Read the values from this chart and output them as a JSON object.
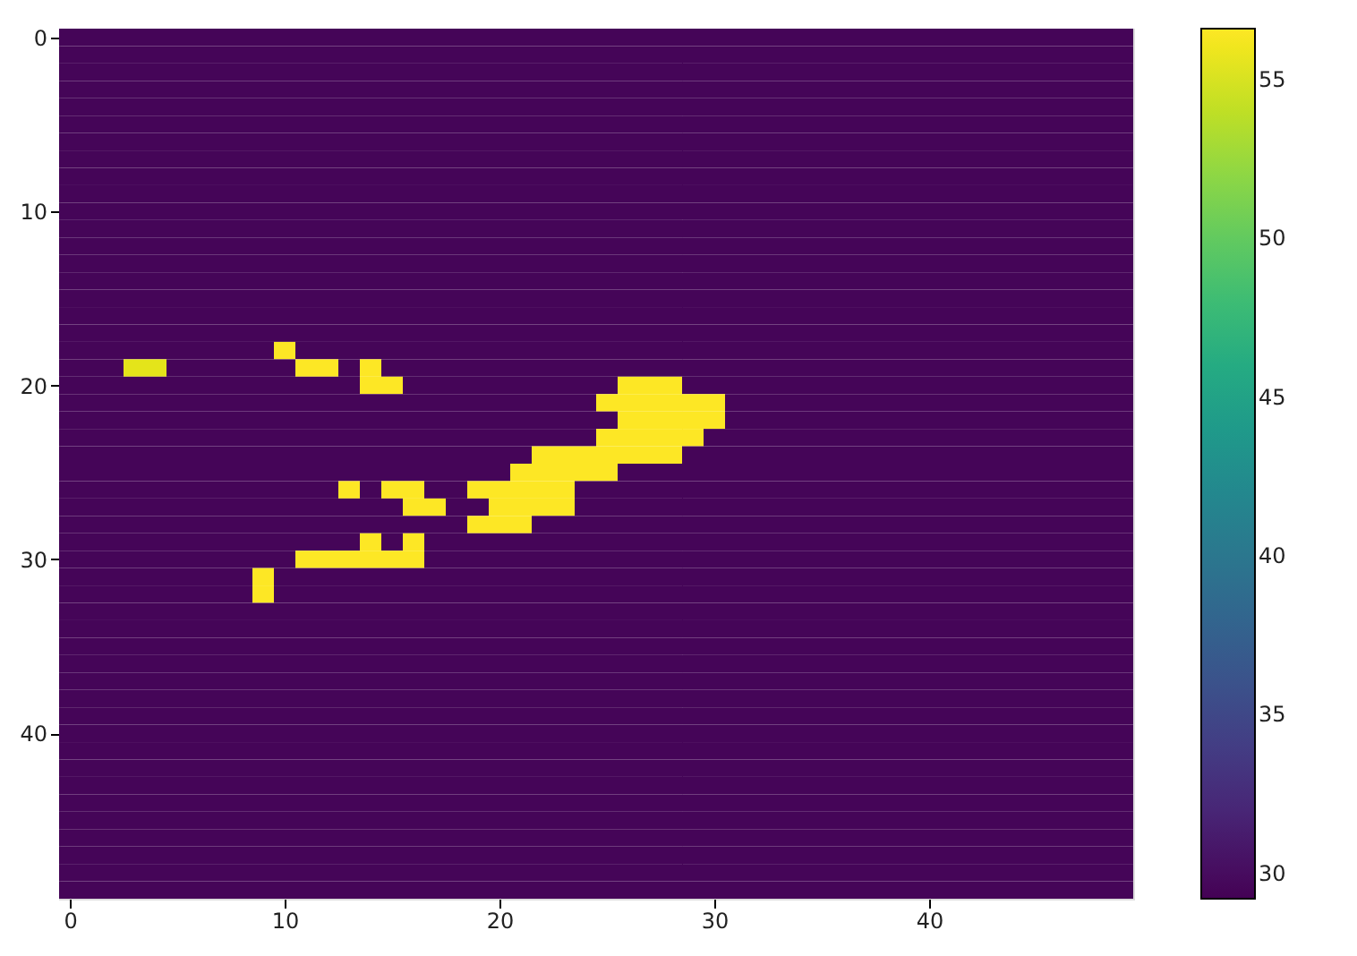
{
  "chart_data": {
    "type": "heatmap",
    "xlim": [
      -0.5,
      49.5
    ],
    "xticks": [
      0,
      10,
      20,
      30,
      40
    ],
    "ylim": [
      49.5,
      -0.5
    ],
    "yticks": [
      0,
      10,
      20,
      30,
      40
    ],
    "clim": [
      29.2,
      56.6
    ],
    "cticks": [
      30,
      35,
      40,
      45,
      50,
      55
    ],
    "grid": false,
    "cells": [
      [
        29.5,
        29.5,
        29.5,
        29.5,
        29.5,
        29.5,
        29.5,
        29.5,
        29.5,
        29.5,
        29.5,
        29.5,
        29.5,
        29.5,
        29.5,
        29.5,
        29.5,
        29.5,
        29.5,
        29.5,
        29.5,
        29.5,
        29.5,
        29.5,
        29.5,
        29.5,
        29.5,
        29.5,
        29.5,
        29.5,
        29.5,
        29.5,
        29.5,
        29.5,
        29.5,
        29.5,
        29.5,
        29.5,
        29.5,
        29.5,
        29.5,
        29.5,
        29.5,
        29.5,
        29.5,
        29.5,
        29.5,
        29.5,
        29.5,
        29.5
      ],
      [
        29.5,
        29.5,
        29.5,
        29.5,
        29.5,
        29.5,
        29.5,
        29.5,
        29.5,
        29.5,
        29.5,
        29.5,
        29.5,
        29.5,
        29.5,
        29.5,
        29.5,
        29.5,
        29.5,
        29.5,
        29.5,
        29.5,
        29.5,
        29.5,
        29.5,
        29.5,
        29.5,
        29.5,
        29.5,
        29.5,
        29.5,
        29.5,
        29.5,
        29.5,
        29.5,
        29.5,
        29.5,
        29.5,
        29.5,
        29.5,
        29.5,
        29.5,
        29.5,
        29.5,
        29.5,
        29.5,
        29.5,
        29.5,
        29.5,
        29.5
      ],
      [
        29.5,
        29.5,
        29.5,
        29.5,
        29.5,
        29.5,
        29.5,
        29.5,
        29.5,
        29.5,
        29.5,
        29.5,
        29.5,
        29.5,
        29.5,
        29.5,
        29.5,
        29.5,
        29.5,
        29.5,
        29.5,
        29.5,
        29.5,
        29.5,
        29.5,
        29.5,
        29.5,
        29.5,
        29.5,
        29.5,
        29.5,
        29.5,
        29.5,
        29.5,
        29.5,
        29.5,
        29.5,
        29.5,
        29.5,
        29.5,
        29.5,
        29.5,
        29.5,
        29.5,
        29.5,
        29.5,
        29.5,
        29.5,
        29.5,
        29.5
      ],
      [
        29.5,
        29.5,
        29.5,
        29.5,
        29.5,
        29.5,
        29.5,
        29.5,
        29.5,
        29.5,
        29.5,
        29.5,
        29.5,
        29.5,
        29.5,
        29.5,
        29.5,
        29.5,
        29.5,
        29.5,
        29.5,
        29.5,
        29.5,
        29.5,
        29.5,
        29.5,
        29.5,
        29.5,
        29.5,
        29.5,
        29.5,
        29.5,
        29.5,
        29.5,
        29.5,
        29.5,
        29.5,
        29.5,
        29.5,
        29.5,
        29.5,
        29.5,
        29.5,
        29.5,
        29.5,
        29.5,
        29.5,
        29.5,
        29.5,
        29.5
      ],
      [
        29.5,
        29.5,
        29.5,
        29.5,
        29.5,
        29.5,
        29.5,
        29.5,
        29.5,
        29.5,
        29.5,
        29.5,
        29.5,
        29.5,
        29.5,
        29.5,
        29.5,
        29.5,
        29.5,
        29.5,
        29.5,
        29.5,
        29.5,
        29.5,
        29.5,
        29.5,
        29.5,
        29.5,
        29.5,
        29.5,
        29.5,
        29.5,
        29.5,
        29.5,
        29.5,
        29.5,
        29.5,
        29.5,
        29.5,
        29.5,
        29.5,
        29.5,
        29.5,
        29.5,
        29.5,
        29.5,
        29.5,
        29.5,
        29.5,
        29.5
      ],
      [
        29.5,
        29.5,
        29.5,
        29.5,
        29.5,
        29.5,
        29.5,
        29.5,
        29.5,
        29.5,
        29.5,
        29.5,
        29.5,
        29.5,
        29.5,
        29.5,
        29.5,
        29.5,
        29.5,
        29.5,
        29.5,
        29.5,
        29.5,
        29.5,
        29.5,
        29.5,
        29.5,
        29.5,
        29.5,
        29.5,
        29.5,
        29.5,
        29.5,
        29.5,
        29.5,
        29.5,
        29.5,
        29.5,
        29.5,
        29.5,
        29.5,
        29.5,
        29.5,
        29.5,
        29.5,
        29.5,
        29.5,
        29.5,
        29.5,
        29.5
      ],
      [
        29.5,
        29.5,
        29.5,
        29.5,
        29.5,
        29.5,
        29.5,
        29.5,
        29.5,
        29.5,
        29.5,
        29.5,
        29.5,
        29.5,
        29.5,
        29.5,
        29.5,
        29.5,
        29.5,
        29.5,
        29.5,
        29.5,
        29.5,
        29.5,
        29.5,
        29.5,
        29.5,
        29.5,
        29.5,
        29.5,
        29.5,
        29.5,
        29.5,
        29.5,
        29.5,
        29.5,
        29.5,
        29.5,
        29.5,
        29.5,
        29.5,
        29.5,
        29.5,
        29.5,
        29.5,
        29.5,
        29.5,
        29.5,
        29.5,
        29.5
      ],
      [
        29.5,
        29.5,
        29.5,
        29.5,
        29.5,
        29.5,
        29.5,
        29.5,
        29.5,
        29.5,
        29.5,
        29.5,
        29.5,
        29.5,
        29.5,
        29.5,
        29.5,
        29.5,
        29.5,
        29.5,
        29.5,
        29.5,
        29.5,
        29.5,
        29.5,
        29.5,
        29.5,
        29.5,
        29.5,
        29.5,
        29.5,
        29.5,
        29.5,
        29.5,
        29.5,
        29.5,
        29.5,
        29.5,
        29.5,
        29.5,
        29.5,
        29.5,
        29.5,
        29.5,
        29.5,
        29.5,
        29.5,
        29.5,
        29.5,
        29.5
      ],
      [
        29.5,
        29.5,
        29.5,
        29.5,
        29.5,
        29.5,
        29.5,
        29.5,
        29.5,
        29.5,
        29.5,
        29.5,
        29.5,
        29.5,
        29.5,
        29.5,
        29.5,
        29.5,
        29.5,
        29.5,
        29.5,
        29.5,
        29.5,
        29.5,
        29.5,
        29.5,
        29.5,
        29.5,
        29.5,
        29.5,
        29.5,
        29.5,
        29.5,
        29.5,
        29.5,
        29.5,
        29.5,
        29.5,
        29.5,
        29.5,
        29.5,
        29.5,
        29.5,
        29.5,
        29.5,
        29.5,
        29.5,
        29.5,
        29.5,
        29.5
      ],
      [
        29.5,
        29.5,
        29.5,
        29.5,
        29.5,
        29.5,
        29.5,
        29.5,
        29.5,
        29.5,
        29.5,
        29.5,
        29.5,
        29.5,
        29.5,
        29.5,
        29.5,
        29.5,
        29.5,
        29.5,
        29.5,
        29.5,
        29.5,
        29.5,
        29.5,
        29.5,
        29.5,
        29.5,
        29.5,
        29.5,
        29.5,
        29.5,
        29.5,
        29.5,
        29.5,
        29.5,
        29.5,
        29.5,
        29.5,
        29.5,
        29.5,
        29.5,
        29.5,
        29.5,
        29.5,
        29.5,
        29.5,
        29.5,
        29.5,
        29.5
      ],
      [
        29.5,
        29.5,
        29.5,
        29.5,
        29.5,
        29.5,
        29.5,
        29.5,
        29.5,
        29.5,
        29.5,
        29.5,
        29.5,
        29.5,
        29.5,
        29.5,
        29.5,
        29.5,
        29.5,
        29.5,
        29.5,
        29.5,
        29.5,
        29.5,
        29.5,
        29.5,
        29.5,
        29.5,
        29.5,
        29.5,
        29.5,
        29.5,
        29.5,
        29.5,
        29.5,
        29.5,
        29.5,
        29.5,
        29.5,
        29.5,
        29.5,
        29.5,
        29.5,
        29.5,
        29.5,
        29.5,
        29.5,
        29.5,
        29.5,
        29.5
      ],
      [
        29.5,
        29.5,
        29.5,
        29.5,
        29.5,
        29.5,
        29.5,
        29.5,
        29.5,
        29.5,
        29.5,
        29.5,
        29.5,
        29.5,
        29.5,
        29.5,
        29.5,
        29.5,
        29.5,
        29.5,
        29.5,
        29.5,
        29.5,
        29.5,
        29.5,
        29.5,
        29.5,
        29.5,
        29.5,
        29.5,
        29.5,
        29.5,
        29.5,
        29.5,
        29.5,
        29.5,
        29.5,
        29.5,
        29.5,
        29.5,
        29.5,
        29.5,
        29.5,
        29.5,
        29.5,
        29.5,
        29.5,
        29.5,
        29.5,
        29.5
      ],
      [
        29.5,
        29.5,
        29.5,
        29.5,
        29.5,
        29.5,
        29.5,
        29.5,
        29.5,
        29.5,
        29.5,
        29.5,
        29.5,
        29.5,
        29.5,
        29.5,
        29.5,
        29.5,
        29.5,
        29.5,
        29.5,
        29.5,
        29.5,
        29.5,
        29.5,
        29.5,
        29.5,
        29.5,
        29.5,
        29.5,
        29.5,
        29.5,
        29.5,
        29.5,
        29.5,
        29.5,
        29.5,
        29.5,
        29.5,
        29.5,
        29.5,
        29.5,
        29.5,
        29.5,
        29.5,
        29.5,
        29.5,
        29.5,
        29.5,
        29.5
      ],
      [
        29.5,
        29.5,
        29.5,
        29.5,
        29.5,
        29.5,
        29.5,
        29.5,
        29.5,
        29.5,
        29.5,
        29.5,
        29.5,
        29.5,
        29.5,
        29.5,
        29.5,
        29.5,
        29.5,
        29.5,
        29.5,
        29.5,
        29.5,
        29.5,
        29.5,
        29.5,
        29.5,
        29.5,
        29.5,
        29.5,
        29.5,
        29.5,
        29.5,
        29.5,
        29.5,
        29.5,
        29.5,
        29.5,
        29.5,
        29.5,
        29.5,
        29.5,
        29.5,
        29.5,
        29.5,
        29.5,
        29.5,
        29.5,
        29.5,
        29.5
      ],
      [
        29.5,
        29.5,
        29.5,
        29.5,
        29.5,
        29.5,
        29.5,
        29.5,
        29.5,
        29.5,
        29.5,
        29.5,
        29.5,
        29.5,
        29.5,
        29.5,
        29.5,
        29.5,
        29.5,
        29.5,
        29.5,
        29.5,
        29.5,
        29.5,
        29.5,
        29.5,
        29.5,
        29.5,
        29.5,
        29.5,
        29.5,
        29.5,
        29.5,
        29.5,
        29.5,
        29.5,
        29.5,
        29.5,
        29.5,
        29.5,
        29.5,
        29.5,
        29.5,
        29.5,
        29.5,
        29.5,
        29.5,
        29.5,
        29.5,
        29.5
      ],
      [
        29.5,
        29.5,
        29.5,
        29.5,
        29.5,
        29.5,
        29.5,
        29.5,
        29.5,
        29.5,
        29.5,
        29.5,
        29.5,
        29.5,
        29.5,
        29.5,
        29.5,
        29.5,
        29.5,
        29.5,
        29.5,
        29.5,
        29.5,
        29.5,
        29.5,
        29.5,
        29.5,
        29.5,
        29.5,
        29.5,
        29.5,
        29.5,
        29.5,
        29.5,
        29.5,
        29.5,
        29.5,
        29.5,
        29.5,
        29.5,
        29.5,
        29.5,
        29.5,
        29.5,
        29.5,
        29.5,
        29.5,
        29.5,
        29.5,
        29.5
      ],
      [
        29.5,
        29.5,
        29.5,
        29.5,
        29.5,
        29.5,
        29.5,
        29.5,
        29.5,
        29.5,
        29.5,
        29.5,
        29.5,
        29.5,
        29.5,
        29.5,
        29.5,
        29.5,
        29.5,
        29.5,
        29.5,
        29.5,
        29.5,
        29.5,
        29.5,
        29.5,
        29.5,
        29.5,
        29.5,
        29.5,
        29.5,
        29.5,
        29.5,
        29.5,
        29.5,
        29.5,
        29.5,
        29.5,
        29.5,
        29.5,
        29.5,
        29.5,
        29.5,
        29.5,
        29.5,
        29.5,
        29.5,
        29.5,
        29.5,
        29.5
      ],
      [
        29.5,
        29.5,
        29.5,
        29.5,
        29.5,
        29.5,
        29.5,
        29.5,
        29.5,
        29.5,
        29.5,
        29.5,
        29.5,
        29.5,
        29.5,
        29.5,
        29.5,
        29.5,
        29.5,
        29.5,
        29.5,
        29.5,
        29.5,
        29.5,
        29.5,
        29.5,
        29.5,
        29.5,
        29.5,
        29.5,
        29.5,
        29.5,
        29.5,
        29.5,
        29.5,
        29.5,
        29.5,
        29.5,
        29.5,
        29.5,
        29.5,
        29.5,
        29.5,
        29.5,
        29.5,
        29.5,
        29.5,
        29.5,
        29.5,
        29.5
      ],
      [
        29.5,
        29.5,
        29.5,
        29.5,
        29.5,
        29.5,
        29.5,
        29.5,
        29.5,
        29.5,
        56.6,
        29.5,
        29.5,
        29.5,
        29.5,
        29.5,
        29.5,
        29.5,
        29.5,
        29.5,
        29.5,
        29.5,
        29.5,
        29.5,
        29.5,
        29.5,
        29.5,
        29.5,
        29.5,
        29.5,
        29.5,
        29.5,
        29.5,
        29.5,
        29.5,
        29.5,
        29.5,
        29.5,
        29.5,
        29.5,
        29.5,
        29.5,
        29.5,
        29.5,
        29.5,
        29.5,
        29.5,
        29.5,
        29.5,
        29.5
      ],
      [
        29.5,
        29.5,
        29.5,
        55.5,
        55.5,
        29.5,
        29.5,
        29.5,
        29.5,
        29.5,
        29.5,
        56.6,
        56.6,
        29.5,
        56.6,
        29.5,
        29.5,
        29.5,
        29.5,
        29.5,
        29.5,
        29.5,
        29.5,
        29.5,
        29.5,
        29.5,
        29.5,
        29.5,
        29.5,
        29.5,
        29.5,
        29.5,
        29.5,
        29.5,
        29.5,
        29.5,
        29.5,
        29.5,
        29.5,
        29.5,
        29.5,
        29.5,
        29.5,
        29.5,
        29.5,
        29.5,
        29.5,
        29.5,
        29.5,
        29.5
      ],
      [
        29.5,
        29.5,
        29.5,
        29.5,
        29.5,
        29.5,
        29.5,
        29.5,
        29.5,
        29.5,
        29.5,
        29.5,
        29.5,
        29.5,
        56.6,
        56.6,
        29.5,
        29.5,
        29.5,
        29.5,
        29.5,
        29.5,
        29.5,
        29.5,
        29.5,
        29.5,
        56.6,
        56.6,
        56.6,
        29.5,
        29.5,
        29.5,
        29.5,
        29.5,
        29.5,
        29.5,
        29.5,
        29.5,
        29.5,
        29.5,
        29.5,
        29.5,
        29.5,
        29.5,
        29.5,
        29.5,
        29.5,
        29.5,
        29.5,
        29.5
      ],
      [
        29.5,
        29.5,
        29.5,
        29.5,
        29.5,
        29.5,
        29.5,
        29.5,
        29.5,
        29.5,
        29.5,
        29.5,
        29.5,
        29.5,
        29.5,
        29.5,
        29.5,
        29.5,
        29.5,
        29.5,
        29.5,
        29.5,
        29.5,
        29.5,
        29.5,
        56.6,
        56.6,
        56.6,
        56.6,
        56.6,
        56.6,
        29.5,
        29.5,
        29.5,
        29.5,
        29.5,
        29.5,
        29.5,
        29.5,
        29.5,
        29.5,
        29.5,
        29.5,
        29.5,
        29.5,
        29.5,
        29.5,
        29.5,
        29.5,
        29.5
      ],
      [
        29.5,
        29.5,
        29.5,
        29.5,
        29.5,
        29.5,
        29.5,
        29.5,
        29.5,
        29.5,
        29.5,
        29.5,
        29.5,
        29.5,
        29.5,
        29.5,
        29.5,
        29.5,
        29.5,
        29.5,
        29.5,
        29.5,
        29.5,
        29.5,
        29.5,
        29.5,
        56.6,
        56.6,
        56.6,
        56.6,
        56.6,
        29.5,
        29.5,
        29.5,
        29.5,
        29.5,
        29.5,
        29.5,
        29.5,
        29.5,
        29.5,
        29.5,
        29.5,
        29.5,
        29.5,
        29.5,
        29.5,
        29.5,
        29.5,
        29.5
      ],
      [
        29.5,
        29.5,
        29.5,
        29.5,
        29.5,
        29.5,
        29.5,
        29.5,
        29.5,
        29.5,
        29.5,
        29.5,
        29.5,
        29.5,
        29.5,
        29.5,
        29.5,
        29.5,
        29.5,
        29.5,
        29.5,
        29.5,
        29.5,
        29.5,
        29.5,
        56.6,
        56.6,
        56.6,
        56.6,
        56.6,
        29.5,
        29.5,
        29.5,
        29.5,
        29.5,
        29.5,
        29.5,
        29.5,
        29.5,
        29.5,
        29.5,
        29.5,
        29.5,
        29.5,
        29.5,
        29.5,
        29.5,
        29.5,
        29.5,
        29.5
      ],
      [
        29.5,
        29.5,
        29.5,
        29.5,
        29.5,
        29.5,
        29.5,
        29.5,
        29.5,
        29.5,
        29.5,
        29.5,
        29.5,
        29.5,
        29.5,
        29.5,
        29.5,
        29.5,
        29.5,
        29.5,
        29.5,
        29.5,
        56.6,
        56.6,
        56.6,
        56.6,
        56.6,
        56.6,
        56.6,
        29.5,
        29.5,
        29.5,
        29.5,
        29.5,
        29.5,
        29.5,
        29.5,
        29.5,
        29.5,
        29.5,
        29.5,
        29.5,
        29.5,
        29.5,
        29.5,
        29.5,
        29.5,
        29.5,
        29.5,
        29.5
      ],
      [
        29.5,
        29.5,
        29.5,
        29.5,
        29.5,
        29.5,
        29.5,
        29.5,
        29.5,
        29.5,
        29.5,
        29.5,
        29.5,
        29.5,
        29.5,
        29.5,
        29.5,
        29.5,
        29.5,
        29.5,
        29.5,
        56.6,
        56.6,
        56.6,
        56.6,
        56.6,
        29.5,
        29.5,
        29.5,
        29.5,
        29.5,
        29.5,
        29.5,
        29.5,
        29.5,
        29.5,
        29.5,
        29.5,
        29.5,
        29.5,
        29.5,
        29.5,
        29.5,
        29.5,
        29.5,
        29.5,
        29.5,
        29.5,
        29.5,
        29.5
      ],
      [
        29.5,
        29.5,
        29.5,
        29.5,
        29.5,
        29.5,
        29.5,
        29.5,
        29.5,
        29.5,
        29.5,
        29.5,
        29.5,
        56.6,
        29.5,
        56.6,
        56.6,
        29.5,
        29.5,
        56.6,
        56.6,
        56.6,
        56.6,
        56.6,
        29.5,
        29.5,
        29.5,
        29.5,
        29.5,
        29.5,
        29.5,
        29.5,
        29.5,
        29.5,
        29.5,
        29.5,
        29.5,
        29.5,
        29.5,
        29.5,
        29.5,
        29.5,
        29.5,
        29.5,
        29.5,
        29.5,
        29.5,
        29.5,
        29.5,
        29.5
      ],
      [
        29.5,
        29.5,
        29.5,
        29.5,
        29.5,
        29.5,
        29.5,
        29.5,
        29.5,
        29.5,
        29.5,
        29.5,
        29.5,
        29.5,
        29.5,
        29.5,
        56.6,
        56.6,
        29.5,
        29.5,
        56.6,
        56.6,
        56.6,
        56.6,
        29.5,
        29.5,
        29.5,
        29.5,
        29.5,
        29.5,
        29.5,
        29.5,
        29.5,
        29.5,
        29.5,
        29.5,
        29.5,
        29.5,
        29.5,
        29.5,
        29.5,
        29.5,
        29.5,
        29.5,
        29.5,
        29.5,
        29.5,
        29.5,
        29.5,
        29.5
      ],
      [
        29.5,
        29.5,
        29.5,
        29.5,
        29.5,
        29.5,
        29.5,
        29.5,
        29.5,
        29.5,
        29.5,
        29.5,
        29.5,
        29.5,
        29.5,
        29.5,
        29.5,
        29.5,
        29.5,
        56.6,
        56.6,
        56.6,
        29.5,
        29.5,
        29.5,
        29.5,
        29.5,
        29.5,
        29.5,
        29.5,
        29.5,
        29.5,
        29.5,
        29.5,
        29.5,
        29.5,
        29.5,
        29.5,
        29.5,
        29.5,
        29.5,
        29.5,
        29.5,
        29.5,
        29.5,
        29.5,
        29.5,
        29.5,
        29.5,
        29.5
      ],
      [
        29.5,
        29.5,
        29.5,
        29.5,
        29.5,
        29.5,
        29.5,
        29.5,
        29.5,
        29.5,
        29.5,
        29.5,
        29.5,
        29.5,
        56.6,
        29.5,
        56.6,
        29.5,
        29.5,
        29.5,
        29.5,
        29.5,
        29.5,
        29.5,
        29.5,
        29.5,
        29.5,
        29.5,
        29.5,
        29.5,
        29.5,
        29.5,
        29.5,
        29.5,
        29.5,
        29.5,
        29.5,
        29.5,
        29.5,
        29.5,
        29.5,
        29.5,
        29.5,
        29.5,
        29.5,
        29.5,
        29.5,
        29.5,
        29.5,
        29.5
      ],
      [
        29.5,
        29.5,
        29.5,
        29.5,
        29.5,
        29.5,
        29.5,
        29.5,
        29.5,
        29.5,
        29.5,
        56.6,
        56.6,
        56.6,
        56.6,
        56.6,
        56.6,
        29.5,
        29.5,
        29.5,
        29.5,
        29.5,
        29.5,
        29.5,
        29.5,
        29.5,
        29.5,
        29.5,
        29.5,
        29.5,
        29.5,
        29.5,
        29.5,
        29.5,
        29.5,
        29.5,
        29.5,
        29.5,
        29.5,
        29.5,
        29.5,
        29.5,
        29.5,
        29.5,
        29.5,
        29.5,
        29.5,
        29.5,
        29.5,
        29.5
      ],
      [
        29.5,
        29.5,
        29.5,
        29.5,
        29.5,
        29.5,
        29.5,
        29.5,
        29.5,
        56.6,
        29.5,
        29.5,
        29.5,
        29.5,
        29.5,
        29.5,
        29.5,
        29.5,
        29.5,
        29.5,
        29.5,
        29.5,
        29.5,
        29.5,
        29.5,
        29.5,
        29.5,
        29.5,
        29.5,
        29.5,
        29.5,
        29.5,
        29.5,
        29.5,
        29.5,
        29.5,
        29.5,
        29.5,
        29.5,
        29.5,
        29.5,
        29.5,
        29.5,
        29.5,
        29.5,
        29.5,
        29.5,
        29.5,
        29.5,
        29.5
      ],
      [
        29.5,
        29.5,
        29.5,
        29.5,
        29.5,
        29.5,
        29.5,
        29.5,
        29.5,
        56.6,
        29.5,
        29.5,
        29.5,
        29.5,
        29.5,
        29.5,
        29.5,
        29.5,
        29.5,
        29.5,
        29.5,
        29.5,
        29.5,
        29.5,
        29.5,
        29.5,
        29.5,
        29.5,
        29.5,
        29.5,
        29.5,
        29.5,
        29.5,
        29.5,
        29.5,
        29.5,
        29.5,
        29.5,
        29.5,
        29.5,
        29.5,
        29.5,
        29.5,
        29.5,
        29.5,
        29.5,
        29.5,
        29.5,
        29.5,
        29.5
      ],
      [
        29.5,
        29.5,
        29.5,
        29.5,
        29.5,
        29.5,
        29.5,
        29.5,
        29.5,
        29.5,
        29.5,
        29.5,
        29.5,
        29.5,
        29.5,
        29.5,
        29.5,
        29.5,
        29.5,
        29.5,
        29.5,
        29.5,
        29.5,
        29.5,
        29.5,
        29.5,
        29.5,
        29.5,
        29.5,
        29.5,
        29.5,
        29.5,
        29.5,
        29.5,
        29.5,
        29.5,
        29.5,
        29.5,
        29.5,
        29.5,
        29.5,
        29.5,
        29.5,
        29.5,
        29.5,
        29.5,
        29.5,
        29.5,
        29.5,
        29.5
      ],
      [
        29.5,
        29.5,
        29.5,
        29.5,
        29.5,
        29.5,
        29.5,
        29.5,
        29.5,
        29.5,
        29.5,
        29.5,
        29.5,
        29.5,
        29.5,
        29.5,
        29.5,
        29.5,
        29.5,
        29.5,
        29.5,
        29.5,
        29.5,
        29.5,
        29.5,
        29.5,
        29.5,
        29.5,
        29.5,
        29.5,
        29.5,
        29.5,
        29.5,
        29.5,
        29.5,
        29.5,
        29.5,
        29.5,
        29.5,
        29.5,
        29.5,
        29.5,
        29.5,
        29.5,
        29.5,
        29.5,
        29.5,
        29.5,
        29.5,
        29.5
      ],
      [
        29.5,
        29.5,
        29.5,
        29.5,
        29.5,
        29.5,
        29.5,
        29.5,
        29.5,
        29.5,
        29.5,
        29.5,
        29.5,
        29.5,
        29.5,
        29.5,
        29.5,
        29.5,
        29.5,
        29.5,
        29.5,
        29.5,
        29.5,
        29.5,
        29.5,
        29.5,
        29.5,
        29.5,
        29.5,
        29.5,
        29.5,
        29.5,
        29.5,
        29.5,
        29.5,
        29.5,
        29.5,
        29.5,
        29.5,
        29.5,
        29.5,
        29.5,
        29.5,
        29.5,
        29.5,
        29.5,
        29.5,
        29.5,
        29.5,
        29.5
      ],
      [
        29.5,
        29.5,
        29.5,
        29.5,
        29.5,
        29.5,
        29.5,
        29.5,
        29.5,
        29.5,
        29.5,
        29.5,
        29.5,
        29.5,
        29.5,
        29.5,
        29.5,
        29.5,
        29.5,
        29.5,
        29.5,
        29.5,
        29.5,
        29.5,
        29.5,
        29.5,
        29.5,
        29.5,
        29.5,
        29.5,
        29.5,
        29.5,
        29.5,
        29.5,
        29.5,
        29.5,
        29.5,
        29.5,
        29.5,
        29.5,
        29.5,
        29.5,
        29.5,
        29.5,
        29.5,
        29.5,
        29.5,
        29.5,
        29.5,
        29.5
      ],
      [
        29.5,
        29.5,
        29.5,
        29.5,
        29.5,
        29.5,
        29.5,
        29.5,
        29.5,
        29.5,
        29.5,
        29.5,
        29.5,
        29.5,
        29.5,
        29.5,
        29.5,
        29.5,
        29.5,
        29.5,
        29.5,
        29.5,
        29.5,
        29.5,
        29.5,
        29.5,
        29.5,
        29.5,
        29.5,
        29.5,
        29.5,
        29.5,
        29.5,
        29.5,
        29.5,
        29.5,
        29.5,
        29.5,
        29.5,
        29.5,
        29.5,
        29.5,
        29.5,
        29.5,
        29.5,
        29.5,
        29.5,
        29.5,
        29.5,
        29.5
      ],
      [
        29.5,
        29.5,
        29.5,
        29.5,
        29.5,
        29.5,
        29.5,
        29.5,
        29.5,
        29.5,
        29.5,
        29.5,
        29.5,
        29.5,
        29.5,
        29.5,
        29.5,
        29.5,
        29.5,
        29.5,
        29.5,
        29.5,
        29.5,
        29.5,
        29.5,
        29.5,
        29.5,
        29.5,
        29.5,
        29.5,
        29.5,
        29.5,
        29.5,
        29.5,
        29.5,
        29.5,
        29.5,
        29.5,
        29.5,
        29.5,
        29.5,
        29.5,
        29.5,
        29.5,
        29.5,
        29.5,
        29.5,
        29.5,
        29.5,
        29.5
      ],
      [
        29.5,
        29.5,
        29.5,
        29.5,
        29.5,
        29.5,
        29.5,
        29.5,
        29.5,
        29.5,
        29.5,
        29.5,
        29.5,
        29.5,
        29.5,
        29.5,
        29.5,
        29.5,
        29.5,
        29.5,
        29.5,
        29.5,
        29.5,
        29.5,
        29.5,
        29.5,
        29.5,
        29.5,
        29.5,
        29.5,
        29.5,
        29.5,
        29.5,
        29.5,
        29.5,
        29.5,
        29.5,
        29.5,
        29.5,
        29.5,
        29.5,
        29.5,
        29.5,
        29.5,
        29.5,
        29.5,
        29.5,
        29.5,
        29.5,
        29.5
      ],
      [
        29.5,
        29.5,
        29.5,
        29.5,
        29.5,
        29.5,
        29.5,
        29.5,
        29.5,
        29.5,
        29.5,
        29.5,
        29.5,
        29.5,
        29.5,
        29.5,
        29.5,
        29.5,
        29.5,
        29.5,
        29.5,
        29.5,
        29.5,
        29.5,
        29.5,
        29.5,
        29.5,
        29.5,
        29.5,
        29.5,
        29.5,
        29.5,
        29.5,
        29.5,
        29.5,
        29.5,
        29.5,
        29.5,
        29.5,
        29.5,
        29.5,
        29.5,
        29.5,
        29.5,
        29.5,
        29.5,
        29.5,
        29.5,
        29.5,
        29.5
      ],
      [
        29.5,
        29.5,
        29.5,
        29.5,
        29.5,
        29.5,
        29.5,
        29.5,
        29.5,
        29.5,
        29.5,
        29.5,
        29.5,
        29.5,
        29.5,
        29.5,
        29.5,
        29.5,
        29.5,
        29.5,
        29.5,
        29.5,
        29.5,
        29.5,
        29.5,
        29.5,
        29.5,
        29.5,
        29.5,
        29.5,
        29.5,
        29.5,
        29.5,
        29.5,
        29.5,
        29.5,
        29.5,
        29.5,
        29.5,
        29.5,
        29.5,
        29.5,
        29.5,
        29.5,
        29.5,
        29.5,
        29.5,
        29.5,
        29.5,
        29.5
      ],
      [
        29.5,
        29.5,
        29.5,
        29.5,
        29.5,
        29.5,
        29.5,
        29.5,
        29.5,
        29.5,
        29.5,
        29.5,
        29.5,
        29.5,
        29.5,
        29.5,
        29.5,
        29.5,
        29.5,
        29.5,
        29.5,
        29.5,
        29.5,
        29.5,
        29.5,
        29.5,
        29.5,
        29.5,
        29.5,
        29.5,
        29.5,
        29.5,
        29.5,
        29.5,
        29.5,
        29.5,
        29.5,
        29.5,
        29.5,
        29.5,
        29.5,
        29.5,
        29.5,
        29.5,
        29.5,
        29.5,
        29.5,
        29.5,
        29.5,
        29.5
      ],
      [
        29.5,
        29.5,
        29.5,
        29.5,
        29.5,
        29.5,
        29.5,
        29.5,
        29.5,
        29.5,
        29.5,
        29.5,
        29.5,
        29.5,
        29.5,
        29.5,
        29.5,
        29.5,
        29.5,
        29.5,
        29.5,
        29.5,
        29.5,
        29.5,
        29.5,
        29.5,
        29.5,
        29.5,
        29.5,
        29.5,
        29.5,
        29.5,
        29.5,
        29.5,
        29.5,
        29.5,
        29.5,
        29.5,
        29.5,
        29.5,
        29.5,
        29.5,
        29.5,
        29.5,
        29.5,
        29.5,
        29.5,
        29.5,
        29.5,
        29.5
      ],
      [
        29.5,
        29.5,
        29.5,
        29.5,
        29.5,
        29.5,
        29.5,
        29.5,
        29.5,
        29.5,
        29.5,
        29.5,
        29.5,
        29.5,
        29.5,
        29.5,
        29.5,
        29.5,
        29.5,
        29.5,
        29.5,
        29.5,
        29.5,
        29.5,
        29.5,
        29.5,
        29.5,
        29.5,
        29.5,
        29.5,
        29.5,
        29.5,
        29.5,
        29.5,
        29.5,
        29.5,
        29.5,
        29.5,
        29.5,
        29.5,
        29.5,
        29.5,
        29.5,
        29.5,
        29.5,
        29.5,
        29.5,
        29.5,
        29.5,
        29.5
      ],
      [
        29.5,
        29.5,
        29.5,
        29.5,
        29.5,
        29.5,
        29.5,
        29.5,
        29.5,
        29.5,
        29.5,
        29.5,
        29.5,
        29.5,
        29.5,
        29.5,
        29.5,
        29.5,
        29.5,
        29.5,
        29.5,
        29.5,
        29.5,
        29.5,
        29.5,
        29.5,
        29.5,
        29.5,
        29.5,
        29.5,
        29.5,
        29.5,
        29.5,
        29.5,
        29.5,
        29.5,
        29.5,
        29.5,
        29.5,
        29.5,
        29.5,
        29.5,
        29.5,
        29.5,
        29.5,
        29.5,
        29.5,
        29.5,
        29.5,
        29.5
      ],
      [
        29.5,
        29.5,
        29.5,
        29.5,
        29.5,
        29.5,
        29.5,
        29.5,
        29.5,
        29.5,
        29.5,
        29.5,
        29.5,
        29.5,
        29.5,
        29.5,
        29.5,
        29.5,
        29.5,
        29.5,
        29.5,
        29.5,
        29.5,
        29.5,
        29.5,
        29.5,
        29.5,
        29.5,
        29.5,
        29.5,
        29.5,
        29.5,
        29.5,
        29.5,
        29.5,
        29.5,
        29.5,
        29.5,
        29.5,
        29.5,
        29.5,
        29.5,
        29.5,
        29.5,
        29.5,
        29.5,
        29.5,
        29.5,
        29.5,
        29.5
      ],
      [
        29.5,
        29.5,
        29.5,
        29.5,
        29.5,
        29.5,
        29.5,
        29.5,
        29.5,
        29.5,
        29.5,
        29.5,
        29.5,
        29.5,
        29.5,
        29.5,
        29.5,
        29.5,
        29.5,
        29.5,
        29.5,
        29.5,
        29.5,
        29.5,
        29.5,
        29.5,
        29.5,
        29.5,
        29.5,
        29.5,
        29.5,
        29.5,
        29.5,
        29.5,
        29.5,
        29.5,
        29.5,
        29.5,
        29.5,
        29.5,
        29.5,
        29.5,
        29.5,
        29.5,
        29.5,
        29.5,
        29.5,
        29.5,
        29.5,
        29.5
      ],
      [
        29.5,
        29.5,
        29.5,
        29.5,
        29.5,
        29.5,
        29.5,
        29.5,
        29.5,
        29.5,
        29.5,
        29.5,
        29.5,
        29.5,
        29.5,
        29.5,
        29.5,
        29.5,
        29.5,
        29.5,
        29.5,
        29.5,
        29.5,
        29.5,
        29.5,
        29.5,
        29.5,
        29.5,
        29.5,
        29.5,
        29.5,
        29.5,
        29.5,
        29.5,
        29.5,
        29.5,
        29.5,
        29.5,
        29.5,
        29.5,
        29.5,
        29.5,
        29.5,
        29.5,
        29.5,
        29.5,
        29.5,
        29.5,
        29.5,
        29.5
      ],
      [
        29.5,
        29.5,
        29.5,
        29.5,
        29.5,
        29.5,
        29.5,
        29.5,
        29.5,
        29.5,
        29.5,
        29.5,
        29.5,
        29.5,
        29.5,
        29.5,
        29.5,
        29.5,
        29.5,
        29.5,
        29.5,
        29.5,
        29.5,
        29.5,
        29.5,
        29.5,
        29.5,
        29.5,
        29.5,
        29.5,
        29.5,
        29.5,
        29.5,
        29.5,
        29.5,
        29.5,
        29.5,
        29.5,
        29.5,
        29.5,
        29.5,
        29.5,
        29.5,
        29.5,
        29.5,
        29.5,
        29.5,
        29.5,
        29.5,
        29.5
      ]
    ]
  }
}
